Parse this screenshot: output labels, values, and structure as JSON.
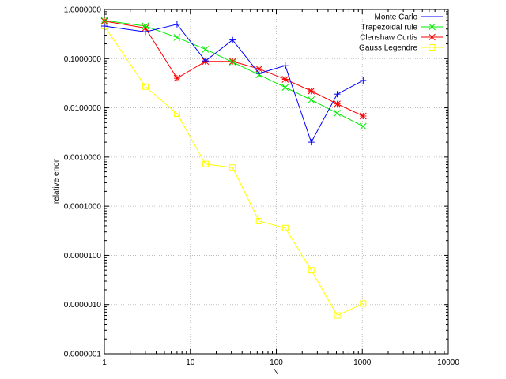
{
  "chart_data": {
    "type": "line",
    "xlabel": "N",
    "ylabel": "relative error",
    "xscale": "log",
    "yscale": "log",
    "xlim": [
      1,
      10000
    ],
    "ylim": [
      1e-07,
      1
    ],
    "grid": true,
    "legend_position": "top-right",
    "x_ticks": [
      1,
      10,
      100,
      1000,
      10000
    ],
    "x_tick_labels": [
      "1",
      "10",
      "100",
      "1000",
      "10000"
    ],
    "y_ticks": [
      1,
      0.1,
      0.01,
      0.001,
      0.0001,
      1e-05,
      1e-06,
      1e-07
    ],
    "y_tick_labels": [
      "1.0000000",
      "0.1000000",
      "0.0100000",
      "0.0010000",
      "0.0001000",
      "0.0000100",
      "0.0000010",
      "0.0000001"
    ],
    "series": [
      {
        "name": "Monte Carlo",
        "color": "#0000ff",
        "marker": "plus",
        "x": [
          1,
          3,
          7,
          15,
          31,
          63,
          127,
          255,
          511,
          1023
        ],
        "y": [
          0.46,
          0.35,
          0.5,
          0.09,
          0.24,
          0.05,
          0.072,
          0.002,
          0.019,
          0.036
        ]
      },
      {
        "name": "Trapezoidal rule",
        "color": "#00ee00",
        "marker": "x",
        "x": [
          1,
          3,
          7,
          15,
          31,
          63,
          127,
          255,
          511,
          1023
        ],
        "y": [
          0.6,
          0.46,
          0.27,
          0.155,
          0.085,
          0.047,
          0.026,
          0.0145,
          0.0078,
          0.0042
        ]
      },
      {
        "name": "Clenshaw Curtis",
        "color": "#ff0000",
        "marker": "star",
        "x": [
          1,
          3,
          7,
          15,
          31,
          63,
          127,
          255,
          511,
          1023
        ],
        "y": [
          0.58,
          0.42,
          0.04,
          0.088,
          0.088,
          0.062,
          0.038,
          0.022,
          0.012,
          0.0068
        ]
      },
      {
        "name": "Gauss Legendre",
        "color": "#ffff00",
        "marker": "square",
        "x": [
          1,
          3,
          7,
          15,
          31,
          63,
          127,
          255,
          511,
          1023
        ],
        "y": [
          0.46,
          0.027,
          0.0076,
          0.00072,
          0.00061,
          5e-05,
          3.6e-05,
          5e-06,
          6e-07,
          1.05e-06
        ]
      }
    ]
  }
}
